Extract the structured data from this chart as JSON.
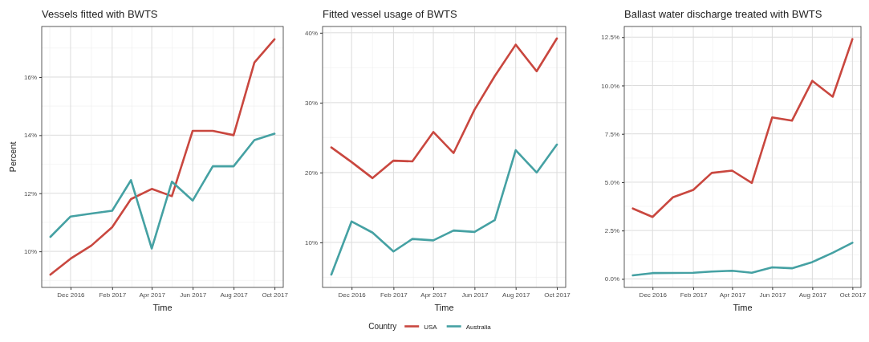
{
  "chart_data": [
    {
      "type": "line",
      "title": "Vessels fitted with BWTS",
      "xlabel": "Time",
      "ylabel": "Percent",
      "x": [
        "2016-11-01",
        "2016-12-01",
        "2017-01-01",
        "2017-02-01",
        "2017-03-01",
        "2017-04-01",
        "2017-05-01",
        "2017-06-01",
        "2017-07-01",
        "2017-08-01",
        "2017-09-01",
        "2017-10-01"
      ],
      "series": [
        {
          "color": "#c9473f",
          "values": [
            9.2,
            9.75,
            10.2,
            10.83,
            11.8,
            12.15,
            11.9,
            14.15,
            14.15,
            14.0,
            16.5,
            17.3
          ]
        },
        {
          "color": "#45a1a3",
          "values": [
            10.5,
            11.2,
            11.3,
            11.4,
            12.45,
            10.1,
            12.4,
            11.75,
            12.93,
            12.93,
            13.83,
            14.05
          ]
        }
      ],
      "xlim": [
        "2016-10-19",
        "2017-10-14"
      ],
      "xticks": [
        {
          "value": "2016-12-01",
          "label": "Dec 2016"
        },
        {
          "value": "2017-02-01",
          "label": "Feb 2017"
        },
        {
          "value": "2017-04-01",
          "label": "Apr 2017"
        },
        {
          "value": "2017-06-01",
          "label": "Jun 2017"
        },
        {
          "value": "2017-08-01",
          "label": "Aug 2017"
        },
        {
          "value": "2017-10-01",
          "label": "Oct 2017"
        }
      ],
      "ylim": [
        8.76,
        17.74
      ],
      "yticks": [
        {
          "value": 10,
          "label": "10%"
        },
        {
          "value": 12,
          "label": "12%"
        },
        {
          "value": 14,
          "label": "14%"
        },
        {
          "value": 16,
          "label": "16%"
        }
      ],
      "grid": true,
      "line_style": "solid"
    },
    {
      "type": "line",
      "title": "Fitted vessel usage of BWTS",
      "xlabel": "Time",
      "legend_title": "Country",
      "legend": "bottom",
      "x": [
        "2016-11-01",
        "2016-12-01",
        "2017-01-01",
        "2017-02-01",
        "2017-03-01",
        "2017-04-01",
        "2017-05-01",
        "2017-06-01",
        "2017-07-01",
        "2017-08-01",
        "2017-09-01",
        "2017-10-01"
      ],
      "series": [
        {
          "name": "USA",
          "color": "#c9473f",
          "values": [
            23.6,
            21.5,
            19.2,
            21.7,
            21.6,
            25.8,
            22.8,
            29,
            33.8,
            38.3,
            34.5,
            39.2
          ]
        },
        {
          "name": "Australia",
          "color": "#45a1a3",
          "values": [
            5.4,
            13.0,
            11.4,
            8.7,
            10.5,
            10.3,
            11.7,
            11.5,
            13.2,
            23.2,
            20.0,
            24.0
          ]
        }
      ],
      "xlim": [
        "2016-10-19",
        "2017-10-14"
      ],
      "xticks": [
        {
          "value": "2016-12-01",
          "label": "Dec 2016"
        },
        {
          "value": "2017-02-01",
          "label": "Feb 2017"
        },
        {
          "value": "2017-04-01",
          "label": "Apr 2017"
        },
        {
          "value": "2017-06-01",
          "label": "Jun 2017"
        },
        {
          "value": "2017-08-01",
          "label": "Aug 2017"
        },
        {
          "value": "2017-10-01",
          "label": "Oct 2017"
        }
      ],
      "ylim": [
        3.56,
        40.9
      ],
      "yticks": [
        {
          "value": 10,
          "label": "10%"
        },
        {
          "value": 20,
          "label": "20%"
        },
        {
          "value": 30,
          "label": "30%"
        },
        {
          "value": 40,
          "label": "40%"
        }
      ],
      "grid": true,
      "line_style": "solid"
    },
    {
      "type": "line",
      "title": "Ballast water discharge treated with BWTS",
      "xlabel": "Time",
      "x": [
        "2016-11-01",
        "2016-12-01",
        "2017-01-01",
        "2017-02-01",
        "2017-03-01",
        "2017-04-01",
        "2017-05-01",
        "2017-06-01",
        "2017-07-01",
        "2017-08-01",
        "2017-09-01",
        "2017-10-01"
      ],
      "series": [
        {
          "color": "#c9473f",
          "values": [
            3.64,
            3.2,
            4.22,
            4.6,
            5.48,
            5.6,
            4.96,
            8.35,
            8.18,
            10.24,
            9.42,
            12.4
          ]
        },
        {
          "color": "#45a1a3",
          "values": [
            0.18,
            0.3,
            0.31,
            0.32,
            0.38,
            0.42,
            0.32,
            0.6,
            0.55,
            0.87,
            1.35,
            1.87
          ]
        }
      ],
      "xlim": [
        "2016-10-19",
        "2017-10-14"
      ],
      "xticks": [
        {
          "value": "2016-12-01",
          "label": "Dec 2016"
        },
        {
          "value": "2017-02-01",
          "label": "Feb 2017"
        },
        {
          "value": "2017-04-01",
          "label": "Apr 2017"
        },
        {
          "value": "2017-06-01",
          "label": "Jun 2017"
        },
        {
          "value": "2017-08-01",
          "label": "Aug 2017"
        },
        {
          "value": "2017-10-01",
          "label": "Oct 2017"
        }
      ],
      "ylim": [
        -0.44,
        13.05
      ],
      "yticks": [
        {
          "value": 0,
          "label": "0.0%"
        },
        {
          "value": 2.5,
          "label": "2.5%"
        },
        {
          "value": 5,
          "label": "5.0%"
        },
        {
          "value": 7.5,
          "label": "7.5%"
        },
        {
          "value": 10,
          "label": "10.0%"
        },
        {
          "value": 12.5,
          "label": "12.5%"
        }
      ],
      "grid": true,
      "line_style": "solid"
    }
  ]
}
